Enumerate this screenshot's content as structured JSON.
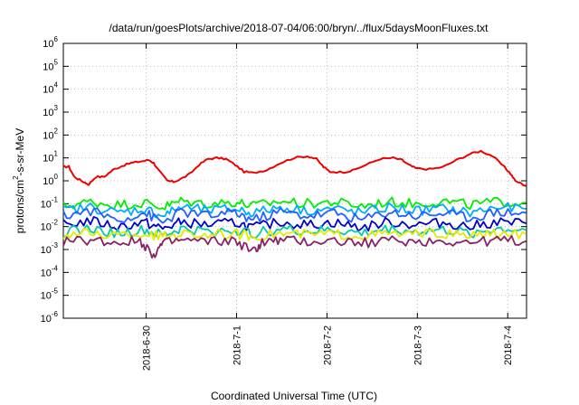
{
  "chart_data": {
    "type": "line",
    "title": "/data/run/goesPlots/archive/2018-07-04/06:00/bryn/../flux/5daysMoonFluxes.txt",
    "xlabel": "Coordinated Universal Time (UTC)",
    "ylabel": "protons/cm2-s-sr-MeV",
    "yscale": "log",
    "ylim": [
      1e-06,
      1000000.0
    ],
    "y_tick_labels": [
      "10-6",
      "10-5",
      "10-4",
      "10-3",
      "10-2",
      "10-1",
      "100",
      "101",
      "102",
      "103",
      "104",
      "105",
      "106"
    ],
    "x_range_days": [
      "2018-06-29 02:00",
      "2018-07-04 07:00"
    ],
    "x_tick_labels": [
      "2018-6-30",
      "2018-7-1",
      "2018-7-2",
      "2018-7-3",
      "2018-7-4"
    ],
    "grid": true,
    "legend": "none",
    "series": [
      {
        "color": "#ee0000",
        "points": [
          [
            0.0,
            4
          ],
          [
            0.06,
            4.2
          ],
          [
            0.12,
            1.5
          ],
          [
            0.2,
            1.0
          ],
          [
            0.28,
            0.7
          ],
          [
            0.36,
            1.5
          ],
          [
            0.45,
            1.5
          ],
          [
            0.55,
            3
          ],
          [
            0.65,
            4.5
          ],
          [
            0.75,
            6
          ],
          [
            0.85,
            7
          ],
          [
            0.95,
            8
          ],
          [
            1.0,
            6
          ],
          [
            1.05,
            3
          ],
          [
            1.15,
            1.0
          ],
          [
            1.22,
            0.9
          ],
          [
            1.3,
            1.2
          ],
          [
            1.4,
            2
          ],
          [
            1.5,
            5
          ],
          [
            1.6,
            9
          ],
          [
            1.7,
            10
          ],
          [
            1.8,
            9
          ],
          [
            1.9,
            5
          ],
          [
            2.0,
            2.5
          ],
          [
            2.1,
            2.2
          ],
          [
            2.25,
            3
          ],
          [
            2.4,
            6
          ],
          [
            2.55,
            10
          ],
          [
            2.7,
            12
          ],
          [
            2.8,
            9
          ],
          [
            2.88,
            4
          ],
          [
            2.95,
            2.5
          ],
          [
            3.1,
            2.4
          ],
          [
            3.2,
            2.8
          ],
          [
            3.35,
            5
          ],
          [
            3.5,
            9
          ],
          [
            3.65,
            10
          ],
          [
            3.75,
            8
          ],
          [
            3.82,
            5
          ],
          [
            3.9,
            3.5
          ],
          [
            4.05,
            3.2
          ],
          [
            4.2,
            4
          ],
          [
            4.35,
            8
          ],
          [
            4.5,
            15
          ],
          [
            4.62,
            20
          ],
          [
            4.75,
            12
          ],
          [
            4.88,
            4
          ],
          [
            4.95,
            2
          ],
          [
            5.0,
            1.0
          ],
          [
            5.12,
            0.6
          ]
        ]
      },
      {
        "color": "#00ee00",
        "points": [
          [
            0.0,
            0.08
          ],
          [
            0.3,
            0.12
          ],
          [
            0.6,
            0.09
          ],
          [
            0.9,
            0.11
          ],
          [
            1.1,
            0.07
          ],
          [
            1.3,
            0.13
          ],
          [
            1.6,
            0.1
          ],
          [
            1.9,
            0.12
          ],
          [
            2.1,
            0.08
          ],
          [
            2.4,
            0.13
          ],
          [
            2.7,
            0.1
          ],
          [
            3.0,
            0.12
          ],
          [
            3.3,
            0.08
          ],
          [
            3.6,
            0.12
          ],
          [
            3.9,
            0.1
          ],
          [
            4.2,
            0.13
          ],
          [
            4.5,
            0.09
          ],
          [
            4.8,
            0.12
          ],
          [
            5.12,
            0.11
          ]
        ]
      },
      {
        "color": "#00aaff",
        "points": [
          [
            0.0,
            0.05
          ],
          [
            0.3,
            0.07
          ],
          [
            0.6,
            0.04
          ],
          [
            0.9,
            0.06
          ],
          [
            1.1,
            0.03
          ],
          [
            1.3,
            0.07
          ],
          [
            1.6,
            0.05
          ],
          [
            1.9,
            0.06
          ],
          [
            2.1,
            0.04
          ],
          [
            2.4,
            0.07
          ],
          [
            2.7,
            0.05
          ],
          [
            3.0,
            0.06
          ],
          [
            3.3,
            0.04
          ],
          [
            3.6,
            0.07
          ],
          [
            3.9,
            0.05
          ],
          [
            4.2,
            0.06
          ],
          [
            4.5,
            0.04
          ],
          [
            4.8,
            0.07
          ],
          [
            5.12,
            0.06
          ]
        ]
      },
      {
        "color": "#2060ff",
        "points": [
          [
            0.0,
            0.03
          ],
          [
            0.3,
            0.05
          ],
          [
            0.6,
            0.02
          ],
          [
            0.9,
            0.04
          ],
          [
            1.1,
            0.015
          ],
          [
            1.3,
            0.045
          ],
          [
            1.6,
            0.03
          ],
          [
            1.9,
            0.04
          ],
          [
            2.1,
            0.02
          ],
          [
            2.4,
            0.045
          ],
          [
            2.7,
            0.03
          ],
          [
            3.0,
            0.04
          ],
          [
            3.3,
            0.02
          ],
          [
            3.6,
            0.045
          ],
          [
            3.9,
            0.03
          ],
          [
            4.2,
            0.04
          ],
          [
            4.5,
            0.025
          ],
          [
            4.8,
            0.045
          ],
          [
            5.12,
            0.04
          ]
        ]
      },
      {
        "color": "#0000cc",
        "points": [
          [
            0.0,
            0.012
          ],
          [
            0.3,
            0.018
          ],
          [
            0.6,
            0.01
          ],
          [
            0.9,
            0.015
          ],
          [
            1.1,
            0.008
          ],
          [
            1.3,
            0.016
          ],
          [
            1.6,
            0.012
          ],
          [
            1.9,
            0.015
          ],
          [
            2.1,
            0.009
          ],
          [
            2.4,
            0.016
          ],
          [
            2.7,
            0.012
          ],
          [
            3.0,
            0.015
          ],
          [
            3.3,
            0.009
          ],
          [
            3.6,
            0.016
          ],
          [
            3.9,
            0.012
          ],
          [
            4.2,
            0.015
          ],
          [
            4.5,
            0.01
          ],
          [
            4.8,
            0.016
          ],
          [
            5.12,
            0.014
          ]
        ]
      },
      {
        "color": "#00ccaa",
        "points": [
          [
            0.0,
            0.006
          ],
          [
            0.3,
            0.008
          ],
          [
            0.6,
            0.005
          ],
          [
            0.9,
            0.007
          ],
          [
            1.1,
            0.004
          ],
          [
            1.3,
            0.008
          ],
          [
            1.6,
            0.006
          ],
          [
            1.9,
            0.007
          ],
          [
            2.1,
            0.005
          ],
          [
            2.4,
            0.008
          ],
          [
            2.7,
            0.006
          ],
          [
            3.0,
            0.007
          ],
          [
            3.3,
            0.005
          ],
          [
            3.6,
            0.008
          ],
          [
            3.9,
            0.006
          ],
          [
            4.2,
            0.007
          ],
          [
            4.5,
            0.005
          ],
          [
            4.8,
            0.008
          ],
          [
            5.12,
            0.007
          ]
        ]
      },
      {
        "color": "#e8e800",
        "points": [
          [
            0.0,
            0.0045
          ],
          [
            0.3,
            0.005
          ],
          [
            0.6,
            0.004
          ],
          [
            0.9,
            0.0048
          ],
          [
            1.1,
            0.0035
          ],
          [
            1.3,
            0.005
          ],
          [
            1.6,
            0.0045
          ],
          [
            1.9,
            0.0048
          ],
          [
            2.1,
            0.004
          ],
          [
            2.4,
            0.005
          ],
          [
            2.7,
            0.0045
          ],
          [
            3.0,
            0.0048
          ],
          [
            3.3,
            0.004
          ],
          [
            3.6,
            0.005
          ],
          [
            3.9,
            0.0045
          ],
          [
            4.2,
            0.0048
          ],
          [
            4.5,
            0.004
          ],
          [
            4.8,
            0.005
          ],
          [
            5.12,
            0.0048
          ]
        ]
      },
      {
        "color": "#882266",
        "points": [
          [
            0.0,
            0.0022
          ],
          [
            0.3,
            0.0026
          ],
          [
            0.6,
            0.002
          ],
          [
            0.85,
            0.0024
          ],
          [
            1.0,
            0.0006
          ],
          [
            1.1,
            0.0018
          ],
          [
            1.3,
            0.0025
          ],
          [
            1.6,
            0.0022
          ],
          [
            1.9,
            0.0024
          ],
          [
            2.1,
            0.0008
          ],
          [
            2.2,
            0.002
          ],
          [
            2.4,
            0.0025
          ],
          [
            2.7,
            0.0022
          ],
          [
            3.0,
            0.0024
          ],
          [
            3.3,
            0.0019
          ],
          [
            3.6,
            0.0025
          ],
          [
            3.9,
            0.0022
          ],
          [
            4.2,
            0.0024
          ],
          [
            4.5,
            0.002
          ],
          [
            4.8,
            0.0025
          ],
          [
            5.12,
            0.0023
          ]
        ]
      }
    ]
  }
}
